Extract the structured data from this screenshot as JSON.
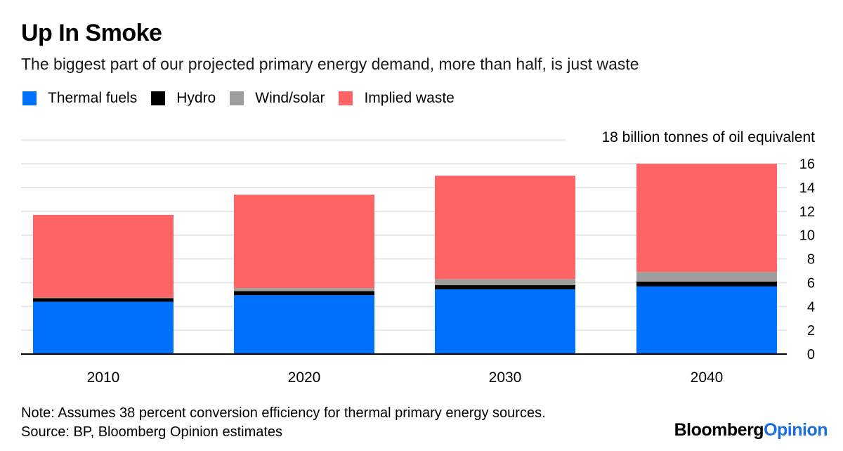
{
  "title": "Up In Smoke",
  "subtitle": "The biggest part of our projected primary energy demand, more than half, is just waste",
  "legend": [
    {
      "label": "Thermal fuels",
      "color": "#0070ff"
    },
    {
      "label": "Hydro",
      "color": "#000000"
    },
    {
      "label": "Wind/solar",
      "color": "#9e9e9e"
    },
    {
      "label": "Implied waste",
      "color": "#ff6464"
    }
  ],
  "chart_data": {
    "type": "bar",
    "stacked": true,
    "unit_label": "18 billion tonnes of oil equivalent",
    "categories": [
      "2010",
      "2020",
      "2030",
      "2040"
    ],
    "series": [
      {
        "name": "Thermal fuels",
        "color": "#0070ff",
        "values": [
          4.4,
          4.95,
          5.45,
          5.7
        ]
      },
      {
        "name": "Hydro",
        "color": "#000000",
        "values": [
          0.3,
          0.35,
          0.35,
          0.4
        ]
      },
      {
        "name": "Wind/solar",
        "color": "#9e9e9e",
        "values": [
          0.05,
          0.25,
          0.5,
          0.8
        ]
      },
      {
        "name": "Implied waste",
        "color": "#ff6464",
        "values": [
          6.95,
          7.85,
          8.7,
          9.1
        ]
      }
    ],
    "yticks": [
      "0",
      "2",
      "4",
      "6",
      "8",
      "10",
      "12",
      "14",
      "16"
    ],
    "ylim": [
      0,
      18
    ],
    "y_axis_side": "right",
    "grid": true
  },
  "note": "Note: Assumes 38 percent conversion efficiency for thermal primary energy sources.",
  "source": "Source: BP, Bloomberg Opinion estimates",
  "brand": {
    "part1": "Bloomberg",
    "part2": "Opinion"
  }
}
